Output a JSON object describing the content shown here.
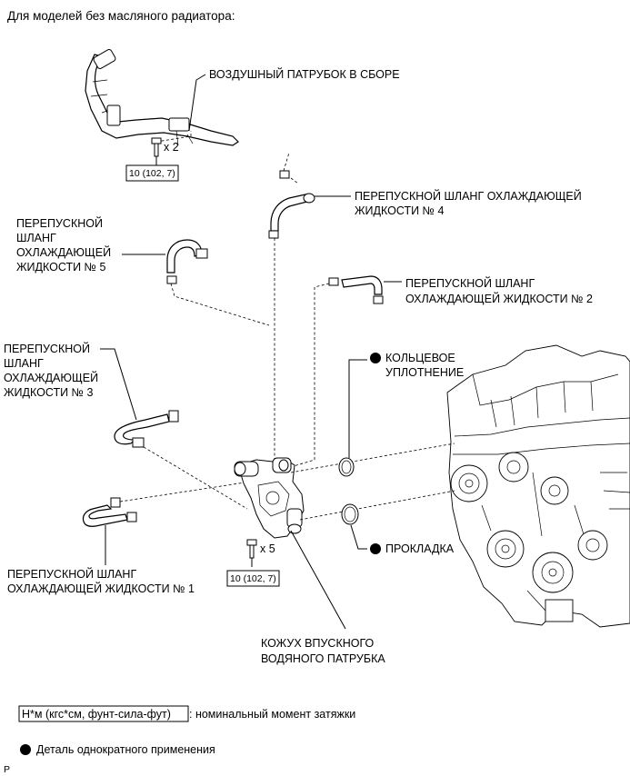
{
  "header": "Для моделей без масляного радиатора:",
  "labels": {
    "air_pipe": "ВОЗДУШНЫЙ ПАТРУБОК В СБОРЕ",
    "hose4": [
      "ПЕРЕПУСКНОЙ ШЛАНГ ОХЛАЖДАЮЩЕЙ",
      "ЖИДКОСТИ № 4"
    ],
    "hose5": [
      "ПЕРЕПУСКНОЙ",
      "ШЛАНГ",
      "ОХЛАЖДАЮЩЕЙ",
      "ЖИДКОСТИ № 5"
    ],
    "hose2": [
      "ПЕРЕПУСКНОЙ ШЛАНГ",
      "ОХЛАЖДАЮЩЕЙ ЖИДКОСТИ № 2"
    ],
    "hose3": [
      "ПЕРЕПУСКНОЙ",
      "ШЛАНГ",
      "ОХЛАЖДАЮЩЕЙ",
      "ЖИДКОСТИ № 3"
    ],
    "oring": [
      "КОЛЬЦЕВОЕ",
      "УПЛОТНЕНИЕ"
    ],
    "gasket": "ПРОКЛАДКА",
    "hose1": [
      "ПЕРЕПУСКНОЙ ШЛАНГ",
      "ОХЛАЖДАЮЩЕЙ ЖИДКОСТИ № 1"
    ],
    "housing": [
      "КОЖУХ ВПУСКНОГО",
      "ВОДЯНОГО ПАТРУБКА"
    ]
  },
  "torque_box": "10 (102, 7)",
  "qty_top": "x 2",
  "qty_bottom": "x 5",
  "legend": {
    "unit_box": "Н*м (кгс*см, фунт-сила-фут)",
    "unit_desc": ": номинальный момент затяжки",
    "nonreusable": "Деталь однократного применения"
  },
  "corner_mark": "P"
}
